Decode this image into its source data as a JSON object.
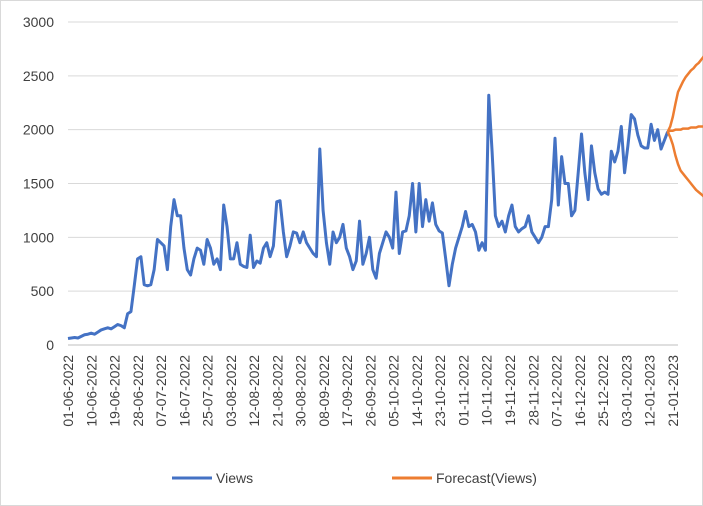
{
  "chart_data": {
    "type": "line",
    "title": "",
    "xlabel": "",
    "ylabel": "",
    "ylim": [
      0,
      3000
    ],
    "y_ticks": [
      "0",
      "500",
      "1000",
      "1500",
      "2000",
      "2500",
      "3000"
    ],
    "x_tick_labels": [
      "01-06-2022",
      "10-06-2022",
      "19-06-2022",
      "28-06-2022",
      "07-07-2022",
      "16-07-2022",
      "25-07-2022",
      "03-08-2022",
      "12-08-2022",
      "21-08-2022",
      "30-08-2022",
      "08-09-2022",
      "17-09-2022",
      "26-09-2022",
      "05-10-2022",
      "14-10-2022",
      "23-10-2022",
      "01-11-2022",
      "10-11-2022",
      "19-11-2022",
      "28-11-2022",
      "07-12-2022",
      "16-12-2022",
      "25-12-2022",
      "03-01-2023",
      "12-01-2023",
      "21-01-2023"
    ],
    "x_start": "2022-06-01",
    "grid": "horizontal",
    "legend_position": "bottom",
    "series": [
      {
        "name": "Views",
        "color": "#4472C4",
        "values": [
          60,
          65,
          70,
          65,
          80,
          95,
          100,
          110,
          100,
          120,
          140,
          150,
          160,
          150,
          170,
          190,
          180,
          160,
          290,
          310,
          550,
          800,
          820,
          560,
          550,
          560,
          700,
          980,
          950,
          920,
          700,
          1100,
          1350,
          1200,
          1200,
          900,
          700,
          650,
          800,
          900,
          880,
          750,
          980,
          900,
          750,
          800,
          700,
          1300,
          1100,
          800,
          800,
          950,
          750,
          730,
          720,
          1020,
          720,
          780,
          760,
          900,
          950,
          820,
          920,
          1330,
          1340,
          1050,
          820,
          920,
          1050,
          1040,
          950,
          1050,
          950,
          900,
          850,
          820,
          1820,
          1250,
          950,
          750,
          1050,
          950,
          1000,
          1120,
          900,
          820,
          700,
          780,
          1150,
          750,
          850,
          1000,
          700,
          620,
          850,
          950,
          1050,
          1000,
          900,
          1420,
          850,
          1050,
          1060,
          1200,
          1500,
          1050,
          1500,
          1100,
          1350,
          1150,
          1320,
          1120,
          1060,
          1040,
          800,
          550,
          750,
          900,
          1000,
          1100,
          1240,
          1100,
          1120,
          1050,
          880,
          950,
          880,
          2320,
          1800,
          1200,
          1100,
          1150,
          1050,
          1200,
          1300,
          1100,
          1050,
          1080,
          1100,
          1200,
          1050,
          1000,
          950,
          1000,
          1100,
          1100,
          1350,
          1920,
          1300,
          1750,
          1500,
          1500,
          1200,
          1250,
          1600,
          1960,
          1600,
          1350,
          1850,
          1600,
          1450,
          1400,
          1420,
          1400,
          1800,
          1700,
          1800,
          2030,
          1600,
          1850,
          2140,
          2100,
          1950,
          1850,
          1830,
          1830,
          2050,
          1900,
          2000,
          1820,
          1900,
          1980
        ]
      },
      {
        "name": "Forecast(Views)",
        "color": "#ED7D31",
        "forecast_start_index": 232,
        "values": [
          1980,
          1990,
          1990,
          2000,
          2000,
          2000,
          2010,
          2010,
          2010,
          2020,
          2020,
          2020,
          2030,
          2030,
          2030,
          2040,
          2040
        ],
        "upper": [
          1980,
          2030,
          2120,
          2240,
          2350,
          2400,
          2450,
          2490,
          2520,
          2550,
          2570,
          2600,
          2620,
          2650,
          2680,
          2700,
          2720
        ],
        "lower": [
          1980,
          1930,
          1860,
          1760,
          1680,
          1620,
          1590,
          1560,
          1530,
          1500,
          1470,
          1440,
          1420,
          1400,
          1380,
          1360,
          1340
        ]
      }
    ]
  }
}
